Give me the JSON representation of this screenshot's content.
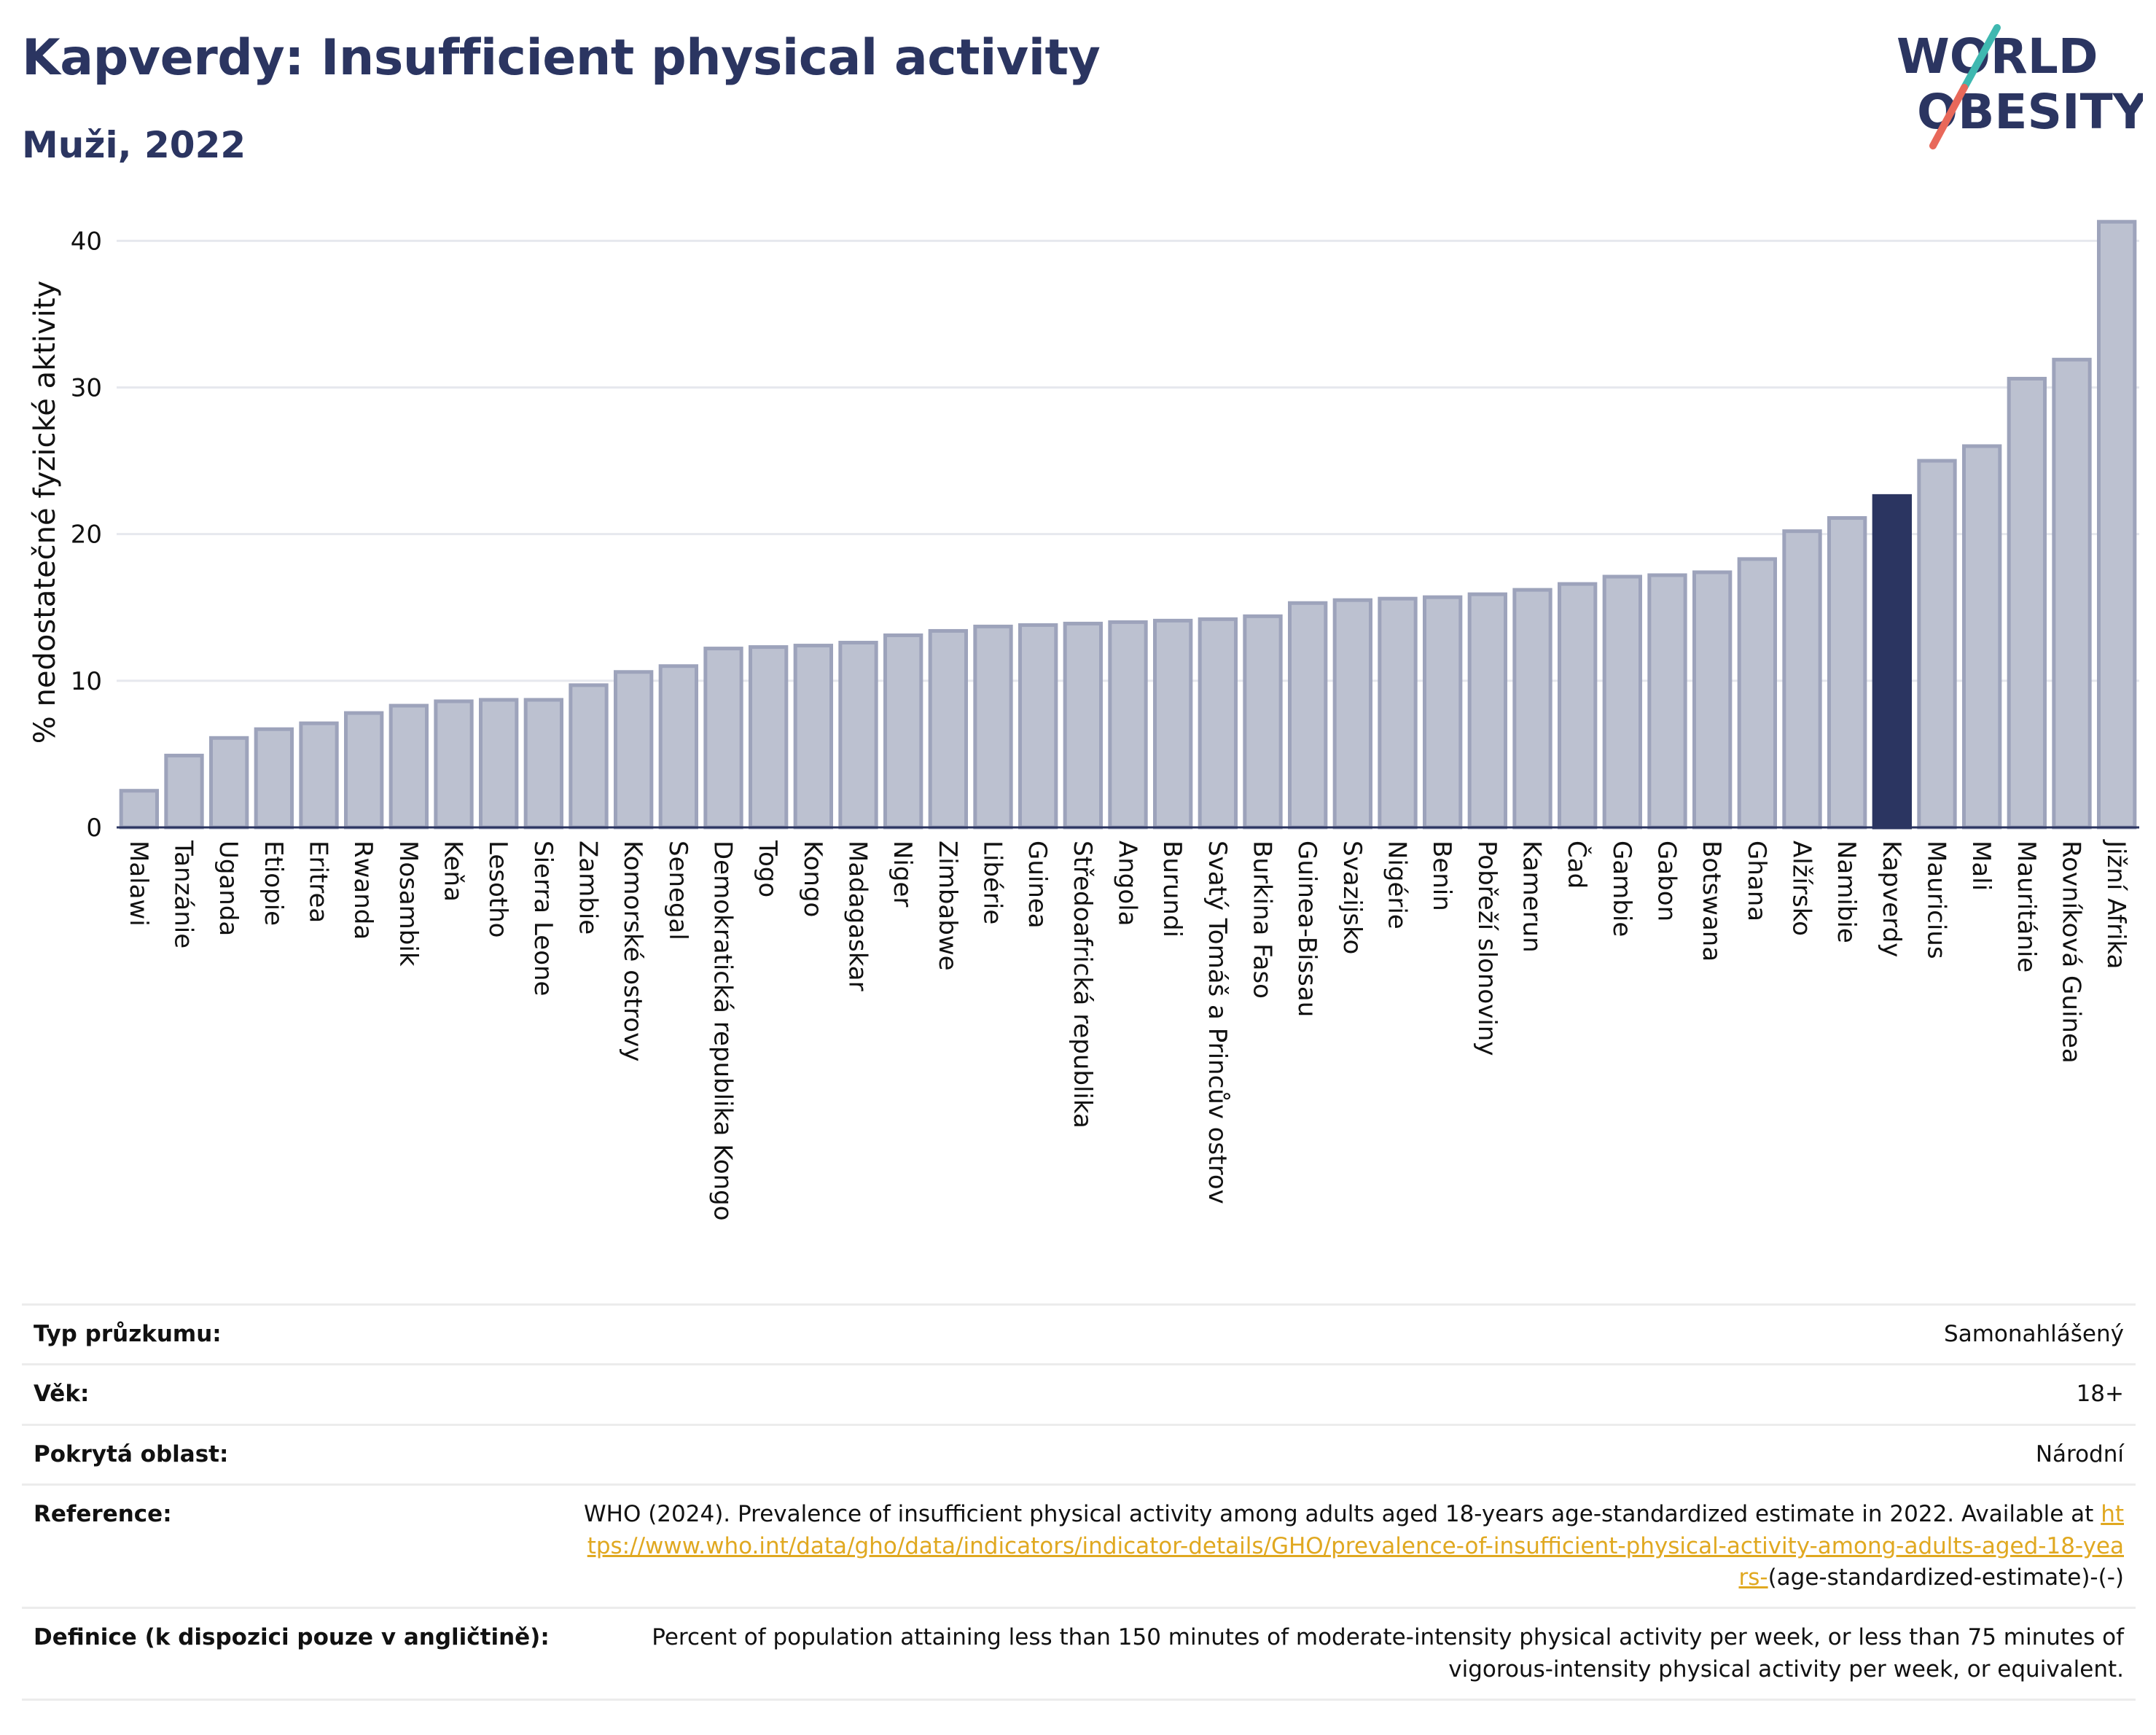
{
  "header": {
    "title": "Kapverdy: Insufficient physical activity",
    "subtitle": "Muži, 2022",
    "logo_line1": "WORLD",
    "logo_line2": "OBESITY"
  },
  "chart_data": {
    "type": "bar",
    "ylabel": "% nedostatečné fyzické aktivity",
    "ylim": [
      0,
      43
    ],
    "yticks": [
      0,
      10,
      20,
      30,
      40
    ],
    "grid": true,
    "highlight": "Kapverdy",
    "colors": {
      "bar": "#bcc1d0",
      "bar_border": "#9da3bb",
      "highlight": "#2b3561"
    },
    "categories": [
      "Malawi",
      "Tanzánie",
      "Uganda",
      "Etiopie",
      "Eritrea",
      "Rwanda",
      "Mosambik",
      "Keňa",
      "Lesotho",
      "Sierra Leone",
      "Zambie",
      "Komorské ostrovy",
      "Senegal",
      "Demokratická republika Kongo",
      "Togo",
      "Kongo",
      "Madagaskar",
      "Niger",
      "Zimbabwe",
      "Libérie",
      "Guinea",
      "Středoafrická republika",
      "Angola",
      "Burundi",
      "Svatý Tomáš a Princův ostrov",
      "Burkina Faso",
      "Guinea-Bissau",
      "Svazijsko",
      "Nigérie",
      "Benin",
      "Pobřeží slonoviny",
      "Kamerun",
      "Čad",
      "Gambie",
      "Gabon",
      "Botswana",
      "Ghana",
      "Alžírsko",
      "Namibie",
      "Kapverdy",
      "Mauricius",
      "Mali",
      "Mauritánie",
      "Rovníková Guinea",
      "Jižní Afrika"
    ],
    "values": [
      2.5,
      4.9,
      6.1,
      6.7,
      7.1,
      7.8,
      8.3,
      8.6,
      8.7,
      8.7,
      9.7,
      10.6,
      11.0,
      12.2,
      12.3,
      12.4,
      12.6,
      13.1,
      13.4,
      13.7,
      13.8,
      13.9,
      14.0,
      14.1,
      14.2,
      14.4,
      15.3,
      15.5,
      15.6,
      15.7,
      15.9,
      16.2,
      16.6,
      17.1,
      17.2,
      17.4,
      18.3,
      20.2,
      21.1,
      22.6,
      25.0,
      26.0,
      30.6,
      31.9,
      41.3
    ]
  },
  "info": {
    "survey_label": "Typ průzkumu:",
    "survey_value": "Samonahlášený",
    "age_label": "Věk:",
    "age_value": "18+",
    "area_label": "Pokrytá oblast:",
    "area_value": "Národní",
    "ref_label": "Reference:",
    "ref_text": "WHO (2024). Prevalence of insufficient physical activity among adults aged 18-years age-standardized estimate in 2022. Available at",
    "ref_link": "https://www.who.int/data/gho/data/indicators/indicator-details/GHO/prevalence-of-insufficient-physical-activity-among-adults-aged-18-years-",
    "ref_suffix": "(age-standardized-estimate)-(-)",
    "def_label": "Definice (k dispozici pouze v angličtině):",
    "def_text": "Percent of population attaining less than 150 minutes of moderate-intensity physical activity per week, or less than 75 minutes of vigorous-intensity physical activity per week, or equivalent."
  }
}
